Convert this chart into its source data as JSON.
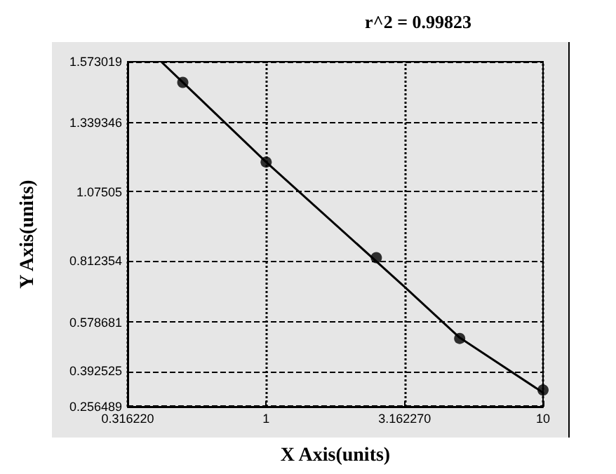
{
  "chart_data": {
    "type": "scatter",
    "title": "r^2 = 0.99823",
    "xlabel": "X Axis(units)",
    "ylabel": "Y Axis(units)",
    "log": "x",
    "xlim": [
      0.31622,
      10
    ],
    "xticks": [
      {
        "value": 0.31622,
        "label": "0.316220"
      },
      1,
      {
        "value": 3.16227,
        "label": "3.162270"
      },
      10
    ],
    "ylim": [
      0.256489,
      1.573019
    ],
    "yticks": [
      0.256489,
      0.392525,
      0.578681,
      0.812354,
      1.07505,
      1.339346,
      1.573019
    ],
    "grid": true,
    "marker": "circle",
    "series": [
      {
        "color": "#000000",
        "x": [
          0.5,
          1,
          2.5,
          5,
          10
        ],
        "values": [
          1.494,
          1.19,
          0.825,
          0.517,
          0.32
        ]
      },
      {
        "type": "line",
        "color": "#000000",
        "marker": "none",
        "line_style": "solid",
        "x": [
          0.418,
          1,
          3.162,
          5,
          10
        ],
        "values": [
          1.573,
          1.19,
          0.714,
          0.52,
          0.31
        ]
      }
    ]
  }
}
